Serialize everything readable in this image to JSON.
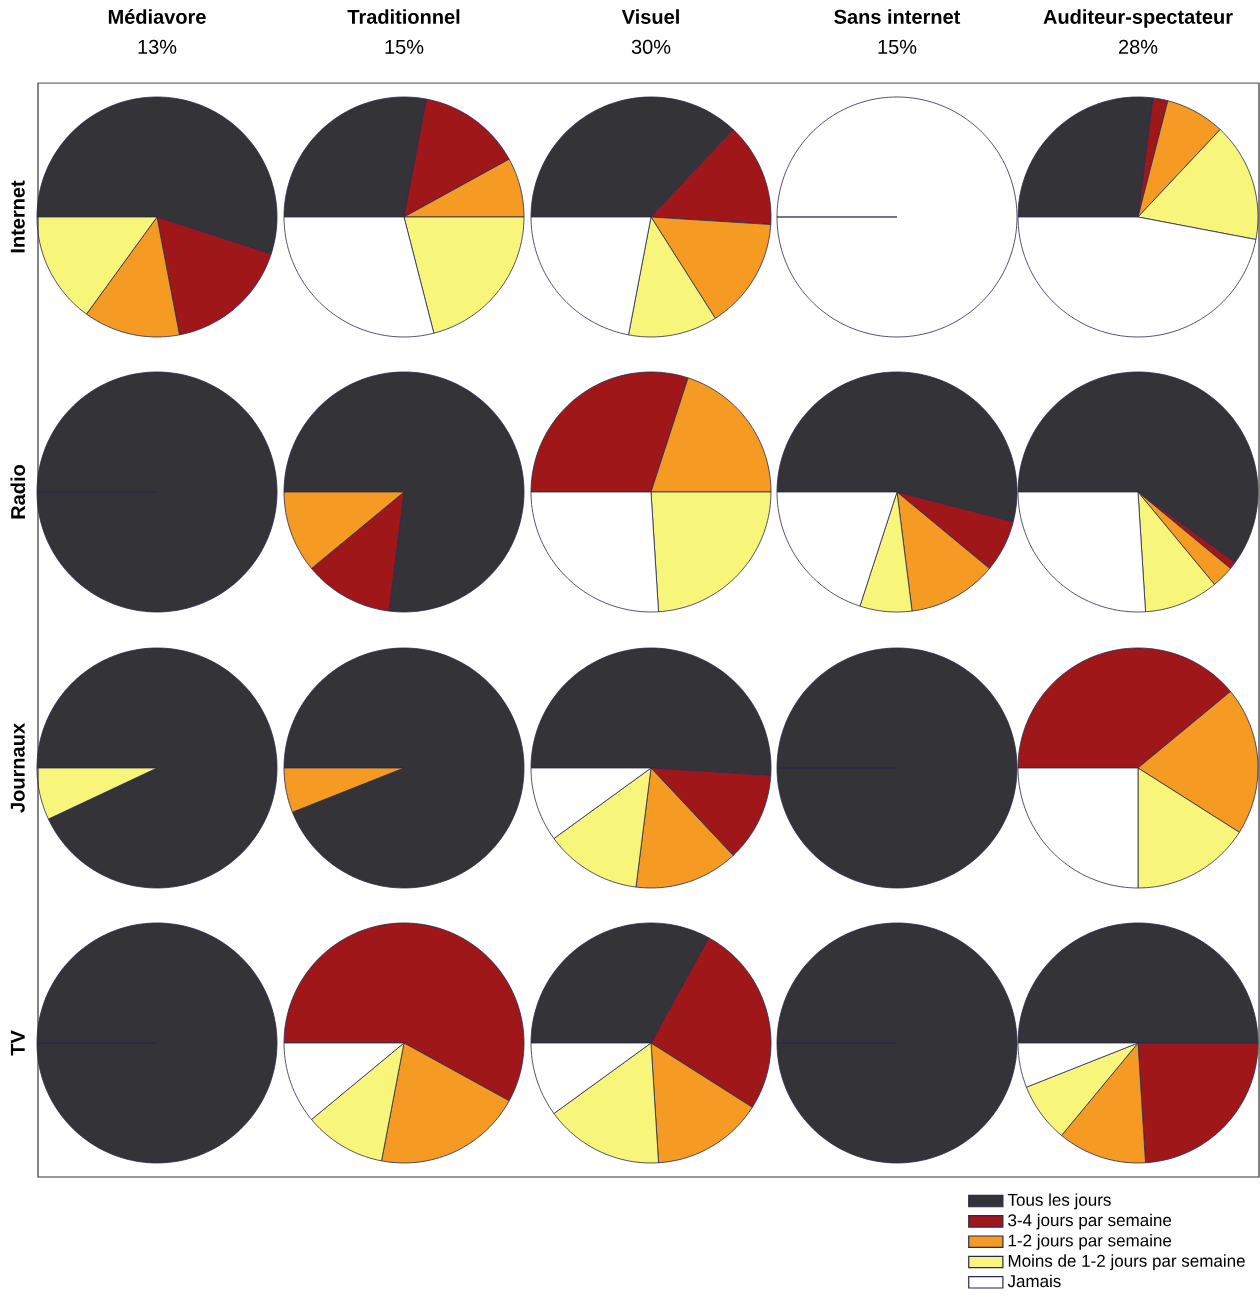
{
  "chart_data": [
    {
      "type": "pie",
      "title": "Médiavore",
      "subtitle": "13%",
      "ylabel": "Internet",
      "categories": [
        null,
        null,
        null,
        null,
        null
      ],
      "values": [
        55,
        17,
        13,
        15,
        0
      ],
      "colors": [
        "#333338",
        "#a0171a",
        "#f59a23",
        "#f8f67a",
        "#ffffff"
      ]
    },
    {
      "type": "pie",
      "title": "Traditionnel",
      "subtitle": "15%",
      "categories": [
        null,
        null,
        null,
        null,
        null
      ],
      "values": [
        28,
        14,
        8,
        21,
        29
      ],
      "colors": [
        "#333338",
        "#a0171a",
        "#f59a23",
        "#f8f67a",
        "#ffffff"
      ]
    },
    {
      "type": "pie",
      "title": "Visuel",
      "subtitle": "30%",
      "categories": [
        null,
        null,
        null,
        null,
        null
      ],
      "values": [
        37,
        14,
        15,
        12,
        22
      ],
      "colors": [
        "#333338",
        "#a0171a",
        "#f59a23",
        "#f8f67a",
        "#ffffff"
      ]
    },
    {
      "type": "pie",
      "title": "Sans internet",
      "subtitle": "15%",
      "categories": [
        null,
        null,
        null,
        null,
        null
      ],
      "values": [
        0,
        0,
        0,
        0,
        100
      ],
      "colors": [
        "#333338",
        "#a0171a",
        "#f59a23",
        "#f8f67a",
        "#ffffff"
      ]
    },
    {
      "type": "pie",
      "title": "Auditeur-spectateur",
      "subtitle": "28%",
      "categories": [
        null,
        null,
        null,
        null,
        null
      ],
      "values": [
        27,
        2,
        8,
        16,
        47
      ],
      "colors": [
        "#333338",
        "#a0171a",
        "#f59a23",
        "#f8f67a",
        "#ffffff"
      ]
    },
    {
      "type": "pie",
      "ylabel": "Radio",
      "categories": [
        null,
        null,
        null,
        null,
        null
      ],
      "values": [
        100,
        0,
        0,
        0,
        0
      ],
      "colors": [
        "#333338",
        "#a0171a",
        "#f59a23",
        "#f8f67a",
        "#ffffff"
      ]
    },
    {
      "type": "pie",
      "categories": [
        null,
        null,
        null,
        null,
        null
      ],
      "values": [
        77,
        12,
        11,
        0,
        0
      ],
      "colors": [
        "#333338",
        "#a0171a",
        "#f59a23",
        "#f8f67a",
        "#ffffff"
      ]
    },
    {
      "type": "pie",
      "categories": [
        null,
        null,
        null,
        null,
        null
      ],
      "values": [
        0,
        30,
        20,
        24,
        26
      ],
      "colors": [
        "#333338",
        "#a0171a",
        "#f59a23",
        "#f8f67a",
        "#ffffff"
      ]
    },
    {
      "type": "pie",
      "categories": [
        null,
        null,
        null,
        null,
        null
      ],
      "values": [
        54,
        7,
        12,
        7,
        20
      ],
      "colors": [
        "#333338",
        "#a0171a",
        "#f59a23",
        "#f8f67a",
        "#ffffff"
      ]
    },
    {
      "type": "pie",
      "categories": [
        null,
        null,
        null,
        null,
        null
      ],
      "values": [
        60,
        1,
        3,
        10,
        26
      ],
      "colors": [
        "#333338",
        "#a0171a",
        "#f59a23",
        "#f8f67a",
        "#ffffff"
      ]
    },
    {
      "type": "pie",
      "ylabel": "Journaux",
      "categories": [
        null,
        null,
        null,
        null,
        null
      ],
      "values": [
        93,
        0,
        0,
        7,
        0
      ],
      "colors": [
        "#333338",
        "#a0171a",
        "#f59a23",
        "#f8f67a",
        "#ffffff"
      ]
    },
    {
      "type": "pie",
      "categories": [
        null,
        null,
        null,
        null,
        null
      ],
      "values": [
        94,
        0,
        6,
        0,
        0
      ],
      "colors": [
        "#333338",
        "#a0171a",
        "#f59a23",
        "#f8f67a",
        "#ffffff"
      ]
    },
    {
      "type": "pie",
      "categories": [
        null,
        null,
        null,
        null,
        null
      ],
      "values": [
        51,
        12,
        14,
        13,
        10
      ],
      "colors": [
        "#333338",
        "#a0171a",
        "#f59a23",
        "#f8f67a",
        "#ffffff"
      ]
    },
    {
      "type": "pie",
      "categories": [
        null,
        null,
        null,
        null,
        null
      ],
      "values": [
        100,
        0,
        0,
        0,
        0
      ],
      "colors": [
        "#333338",
        "#a0171a",
        "#f59a23",
        "#f8f67a",
        "#ffffff"
      ]
    },
    {
      "type": "pie",
      "categories": [
        null,
        null,
        null,
        null,
        null
      ],
      "values": [
        0,
        39,
        20,
        16,
        25
      ],
      "colors": [
        "#333338",
        "#a0171a",
        "#f59a23",
        "#f8f67a",
        "#ffffff"
      ]
    },
    {
      "type": "pie",
      "ylabel": "TV",
      "categories": [
        null,
        null,
        null,
        null,
        null
      ],
      "values": [
        100,
        0,
        0,
        0,
        0
      ],
      "colors": [
        "#333338",
        "#a0171a",
        "#f59a23",
        "#f8f67a",
        "#ffffff"
      ]
    },
    {
      "type": "pie",
      "categories": [
        null,
        null,
        null,
        null,
        null
      ],
      "values": [
        0,
        58,
        20,
        11,
        11
      ],
      "colors": [
        "#333338",
        "#a0171a",
        "#f59a23",
        "#f8f67a",
        "#ffffff"
      ]
    },
    {
      "type": "pie",
      "categories": [
        null,
        null,
        null,
        null,
        null
      ],
      "values": [
        33,
        26,
        15,
        16,
        10
      ],
      "colors": [
        "#333338",
        "#a0171a",
        "#f59a23",
        "#f8f67a",
        "#ffffff"
      ]
    },
    {
      "type": "pie",
      "categories": [
        null,
        null,
        null,
        null,
        null
      ],
      "values": [
        100,
        0,
        0,
        0,
        0
      ],
      "colors": [
        "#333338",
        "#a0171a",
        "#f59a23",
        "#f8f67a",
        "#ffffff"
      ]
    },
    {
      "type": "pie",
      "legend": "bottom",
      "categories": [
        "Tous les jours",
        "3-4 jours par semaine",
        "1-2 jours par semaine",
        "Moins de 1-2 jours par semaine",
        "Jamais"
      ],
      "values": [
        50,
        24,
        12,
        8,
        6
      ],
      "colors": [
        "#333338",
        "#a0171a",
        "#f59a23",
        "#f8f67a",
        "#ffffff"
      ]
    }
  ]
}
